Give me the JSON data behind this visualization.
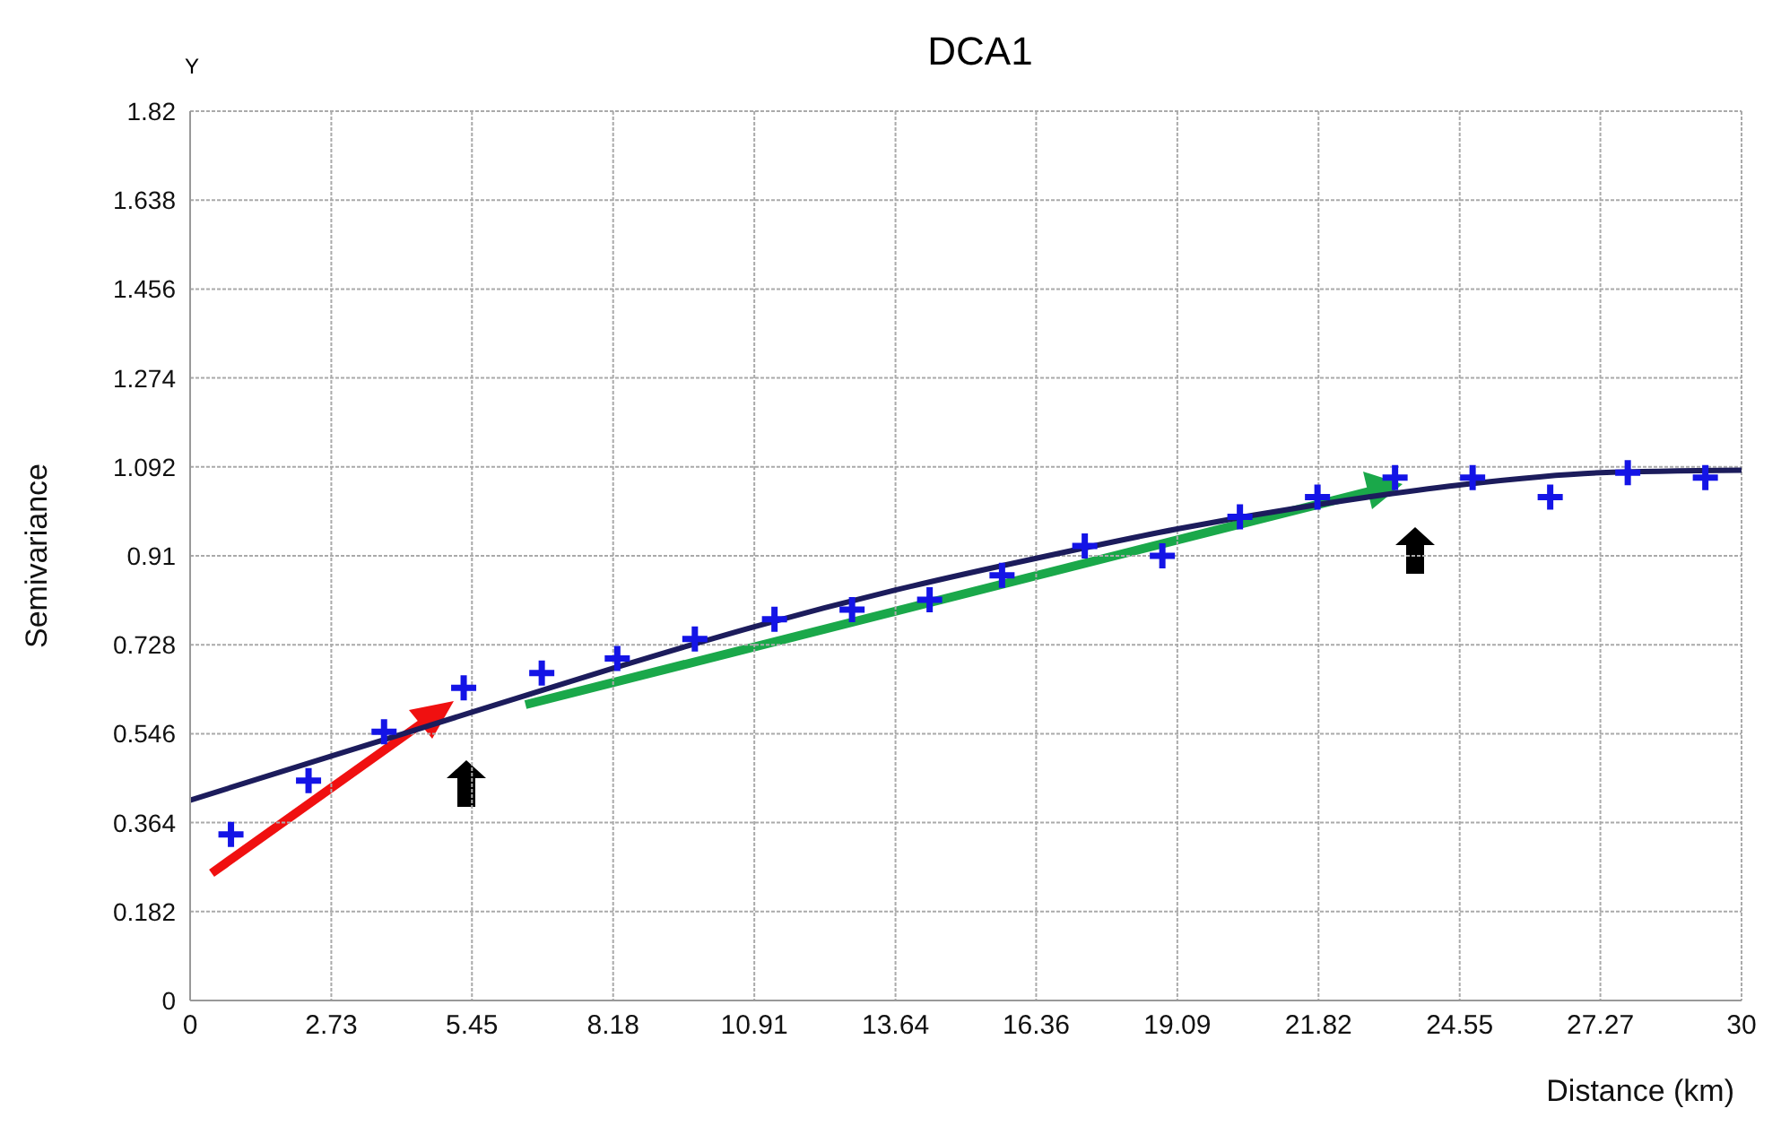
{
  "chart_data": {
    "type": "scatter",
    "title": "DCA1",
    "xlabel": "Distance (km)",
    "ylabel": "Semivariance",
    "annotations": [
      "Y"
    ],
    "xlim": [
      0,
      30
    ],
    "xticks": [
      0,
      2.73,
      5.45,
      8.18,
      10.91,
      13.64,
      16.36,
      19.09,
      21.82,
      24.55,
      27.27,
      30
    ],
    "ylim": [
      0,
      1.82
    ],
    "yticks": [
      0,
      0.182,
      0.364,
      0.546,
      0.728,
      0.91,
      1.092,
      1.274,
      1.456,
      1.638,
      1.82
    ],
    "grid": true,
    "marker": "cross",
    "series": [
      {
        "color": "#1414e6",
        "x": [
          0.79,
          2.29,
          3.75,
          5.29,
          6.8,
          8.26,
          9.76,
          11.3,
          12.8,
          14.3,
          15.7,
          17.3,
          18.8,
          20.3,
          21.8,
          23.3,
          24.8,
          26.3,
          27.8,
          29.3
        ],
        "values": [
          0.34,
          0.45,
          0.55,
          0.64,
          0.67,
          0.7,
          0.74,
          0.78,
          0.8,
          0.82,
          0.87,
          0.93,
          0.91,
          0.99,
          1.03,
          1.07,
          1.07,
          1.03,
          1.08,
          1.07
        ]
      },
      {
        "type": "line",
        "color": "#1c1c5c",
        "marker": "none",
        "x": [
          0,
          2.73,
          5.45,
          8.18,
          10.91,
          13.64,
          16.36,
          19.09,
          21.82,
          24.55,
          27.27,
          30
        ],
        "values": [
          0.41,
          0.5,
          0.59,
          0.68,
          0.765,
          0.84,
          0.905,
          0.965,
          1.015,
          1.055,
          1.08,
          1.085
        ]
      }
    ]
  }
}
